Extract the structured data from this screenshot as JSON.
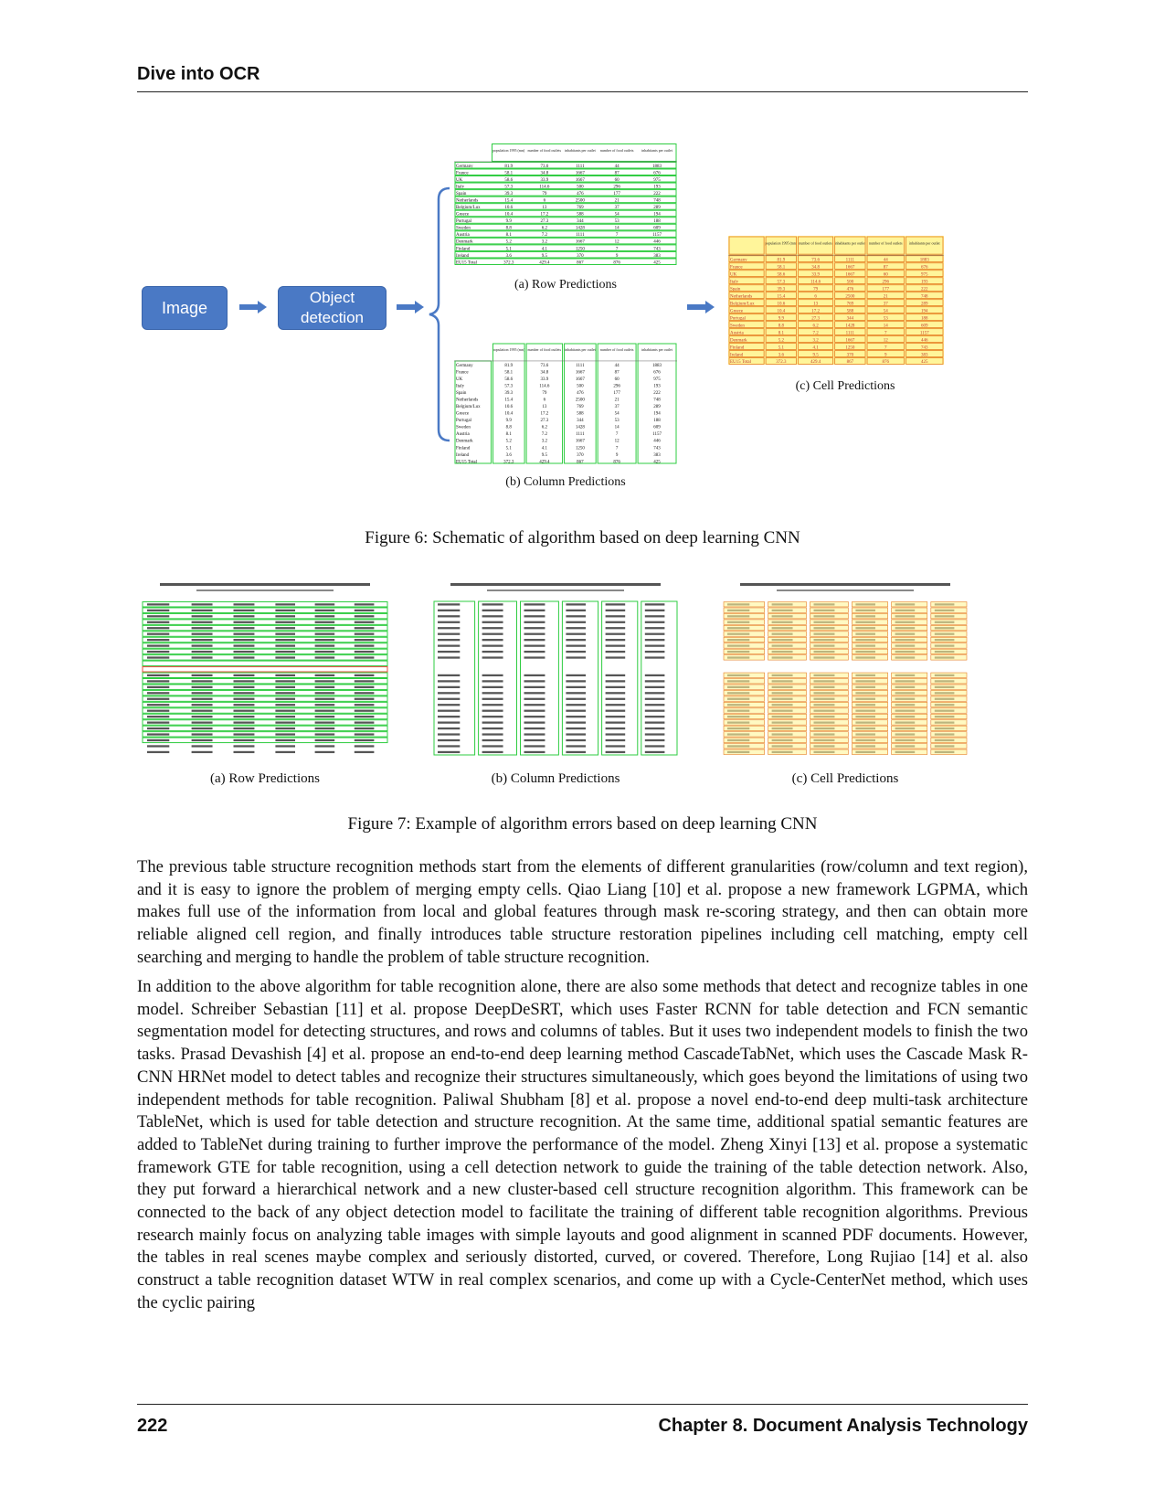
{
  "header": {
    "title": "Dive into OCR"
  },
  "figure6": {
    "boxes": {
      "image": "Image",
      "object_detection": "Object detection"
    },
    "row_caption": "(a) Row Predictions",
    "col_caption": "(b) Column Predictions",
    "cell_caption": "(c) Cell Predictions",
    "caption": "Figure 6: Schematic of algorithm based on deep learning CNN",
    "table": {
      "headers": [
        "",
        "population 1995 (mn)",
        "number of food outlets 1996/7 (000)*",
        "inhabitants per outlet 1996/7",
        "number of food outlets 1992/3 (000)**",
        "inhabitants per outlet 1992/3"
      ],
      "rows": [
        [
          "Germany",
          "81.9",
          "73.6",
          "1111",
          "44",
          "1883"
        ],
        [
          "France",
          "58.1",
          "34.8",
          "1667",
          "87",
          "676"
        ],
        [
          "UK",
          "58.6",
          "33.9",
          "1667",
          "60",
          "975"
        ],
        [
          "Italy",
          "57.3",
          "114.6",
          "500",
          "296",
          "193"
        ],
        [
          "Spain",
          "39.3",
          "79",
          "476",
          "177",
          "222"
        ],
        [
          "Netherlands",
          "15.4",
          "6",
          "2500",
          "21",
          "748"
        ],
        [
          "Belgium/Lux",
          "10.6",
          "13",
          "769",
          "37",
          "289"
        ],
        [
          "Greece",
          "10.4",
          "17.2",
          "588",
          "54",
          "194"
        ],
        [
          "Portugal",
          "9.9",
          "27.3",
          "344",
          "53",
          "188"
        ],
        [
          "Sweden",
          "8.8",
          "6.2",
          "1428",
          "14",
          "609"
        ],
        [
          "Austria",
          "8.1",
          "7.2",
          "1111",
          "7",
          "1157"
        ],
        [
          "Denmark",
          "5.2",
          "3.2",
          "1667",
          "12",
          "446"
        ],
        [
          "Finland",
          "5.1",
          "4.1",
          "1250",
          "7",
          "743"
        ],
        [
          "Ireland",
          "3.6",
          "9.5",
          "370",
          "9",
          "383"
        ],
        [
          "EU15 Total",
          "372.3",
          "429.4",
          "867",
          "876",
          "425"
        ]
      ]
    }
  },
  "figure7": {
    "row_caption": "(a) Row Predictions",
    "col_caption": "(b) Column Predictions",
    "cell_caption": "(c) Cell Predictions",
    "caption": "Figure 7: Example of algorithm errors based on deep learning CNN"
  },
  "paragraphs": [
    "The previous table structure recognition methods start from the elements of different granularities (row/column and text region), and it is easy to ignore the problem of merging empty cells. Qiao Liang [10] et al. propose a new framework LGPMA, which makes full use of the information from local and global features through mask re-scoring strategy, and then can obtain more reliable aligned cell region, and finally introduces table structure restoration pipelines including cell matching, empty cell searching and merging to handle the problem of table structure recognition.",
    "In addition to the above algorithm for table recognition alone, there are also some methods that detect and recognize tables in one model. Schreiber Sebastian [11] et al. propose DeepDeSRT, which uses Faster RCNN for table detection and FCN semantic segmentation model for detecting structures, and rows and columns of tables. But it uses two independent models to finish the two tasks. Prasad Devashish [4] et al. propose an end-to-end deep learning method CascadeTabNet, which uses the Cascade Mask R-CNN HRNet model to detect tables and recognize their structures simultaneously, which goes beyond the limitations of using two independent methods for table recognition. Paliwal Shubham [8] et al. propose a novel end-to-end deep multi-task architecture TableNet, which is used for table detection and structure recognition. At the same time, additional spatial semantic features are added to TableNet during training to further improve the performance of the model. Zheng Xinyi [13] et al. propose a systematic framework GTE for table recognition, using a cell detection network to guide the training of the table detection network. Also, they put forward a hierarchical network and a new cluster-based cell structure recognition algorithm. This framework can be connected to the back of any object detection model to facilitate the training of different table recognition algorithms. Previous research mainly focus on analyzing table images with simple layouts and good alignment in scanned PDF documents. However, the tables in real scenes maybe complex and seriously distorted, curved, or covered. Therefore, Long Rujiao [14] et al. also construct a table recognition dataset WTW in real complex scenarios, and come up with a Cycle-CenterNet method, which uses the cyclic pairing"
  ],
  "footer": {
    "page_number": "222",
    "chapter": "Chapter 8.  Document Analysis Technology"
  }
}
